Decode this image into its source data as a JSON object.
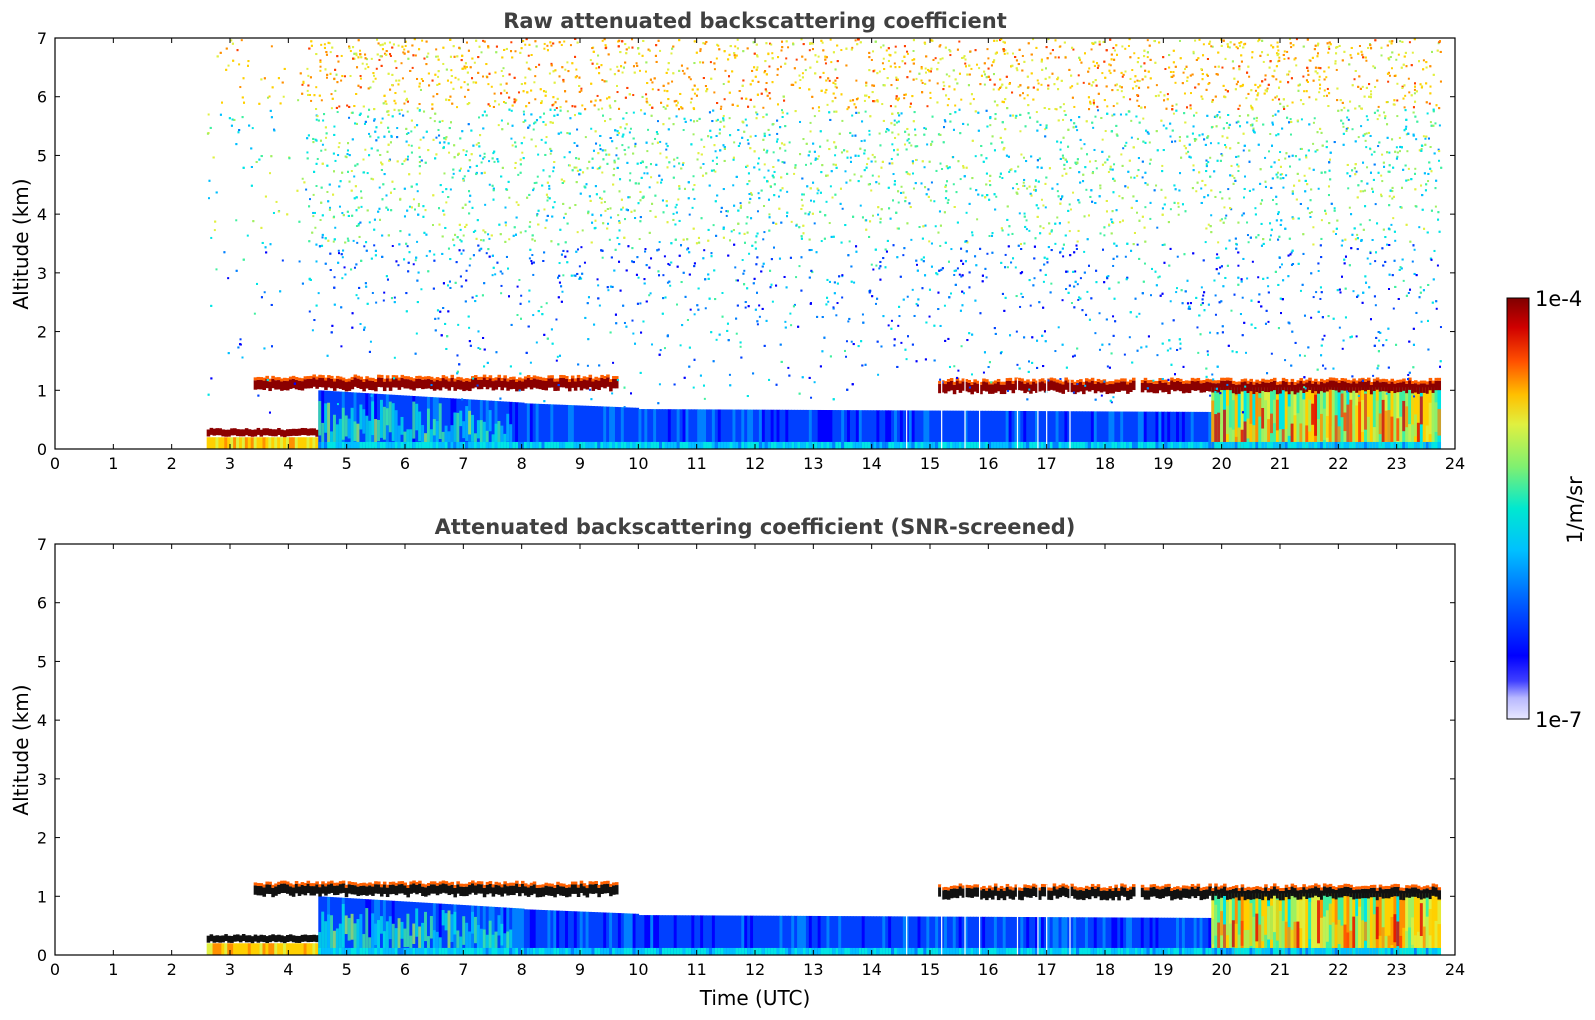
{
  "chart_data": [
    {
      "type": "heatmap",
      "title": "Raw attenuated backscattering coefficient",
      "xlabel": "",
      "ylabel": "Altitude (km)",
      "xlim": [
        0,
        24
      ],
      "ylim": [
        0,
        7
      ],
      "xticks": [
        "0",
        "1",
        "2",
        "3",
        "4",
        "5",
        "6",
        "7",
        "8",
        "9",
        "10",
        "11",
        "12",
        "13",
        "14",
        "15",
        "16",
        "17",
        "18",
        "19",
        "20",
        "21",
        "22",
        "23",
        "24"
      ],
      "yticks": [
        "0",
        "1",
        "2",
        "3",
        "4",
        "5",
        "6",
        "7"
      ],
      "data_start_hour": 2.6,
      "data_end_hour": 23.75,
      "cloud_layers": [
        {
          "start": 2.6,
          "end": 4.5,
          "altitude_km": 0.25
        },
        {
          "start": 3.4,
          "end": 9.6,
          "altitude_km": 1.1
        },
        {
          "start": 15.1,
          "end": 18.5,
          "altitude_km": 1.05
        },
        {
          "start": 18.6,
          "end": 23.75,
          "altitude_km": 1.05
        }
      ],
      "boundary_layer_top_km": [
        [
          4.5,
          1.0
        ],
        [
          8.0,
          0.8
        ],
        [
          10.0,
          0.7
        ],
        [
          19.8,
          0.6
        ],
        [
          20.0,
          1.05
        ]
      ],
      "gaps_hours": [
        14.6,
        15.2,
        15.6,
        15.85,
        16.5,
        16.85,
        17.0,
        17.4
      ]
    },
    {
      "type": "heatmap",
      "title": "Attenuated backscattering coefficient (SNR-screened)",
      "xlabel": "Time (UTC)",
      "ylabel": "Altitude (km)",
      "xlim": [
        0,
        24
      ],
      "ylim": [
        0,
        7
      ],
      "xticks": [
        "0",
        "1",
        "2",
        "3",
        "4",
        "5",
        "6",
        "7",
        "8",
        "9",
        "10",
        "11",
        "12",
        "13",
        "14",
        "15",
        "16",
        "17",
        "18",
        "19",
        "20",
        "21",
        "22",
        "23",
        "24"
      ],
      "yticks": [
        "0",
        "1",
        "2",
        "3",
        "4",
        "5",
        "6",
        "7"
      ]
    }
  ],
  "colorbar": {
    "max_label": "1e-4",
    "min_label": "1e-7",
    "units": "1/m/sr",
    "colors": [
      "#e8e8ff",
      "#b8b8ff",
      "#8080ff",
      "#0000ff",
      "#0040ff",
      "#0080ff",
      "#00bfff",
      "#00e5e5",
      "#40f0a0",
      "#a0f060",
      "#e0f040",
      "#ffd000",
      "#ff9000",
      "#ff4000",
      "#e00000",
      "#8b0000"
    ]
  }
}
